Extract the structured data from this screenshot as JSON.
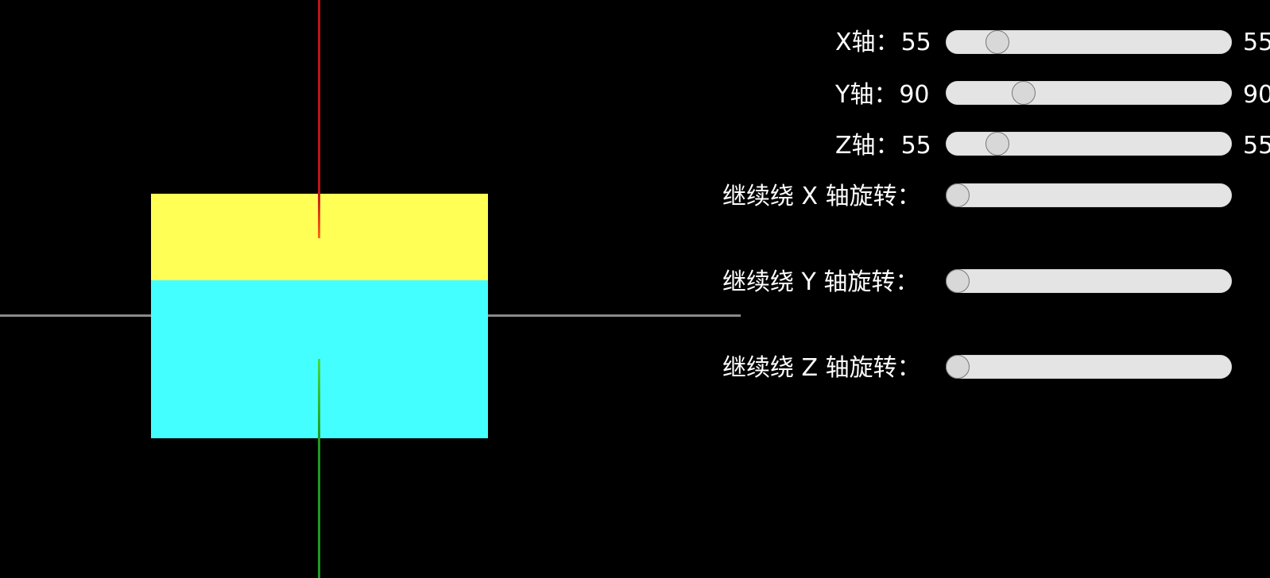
{
  "colors": {
    "background": "#000000",
    "axis_x": "#8a8a8a",
    "axis_y": "#c0121a",
    "axis_y_tip": "#ff6a1a",
    "axis_z": "#1f9a24",
    "axis_z_tip": "#4bdc3a",
    "face_top": "#ffff55",
    "face_front": "#44ffff",
    "track": "#e4e4e4"
  },
  "controls": {
    "x": {
      "label": "X轴：",
      "value": "55",
      "side_value": "55",
      "min": 0,
      "max": 360,
      "current": 55
    },
    "y": {
      "label": "Y轴：",
      "value": "90",
      "side_value": "90",
      "min": 0,
      "max": 360,
      "current": 90
    },
    "z": {
      "label": "Z轴：",
      "value": "55",
      "side_value": "55",
      "min": 0,
      "max": 360,
      "current": 55
    },
    "spin_x": {
      "label": "继续绕 X 轴旋转：",
      "min": 0,
      "max": 360,
      "current": 0
    },
    "spin_y": {
      "label": "继续绕 Y 轴旋转：",
      "min": 0,
      "max": 360,
      "current": 0
    },
    "spin_z": {
      "label": "继续绕 Z 轴旋转：",
      "min": 0,
      "max": 360,
      "current": 0
    }
  }
}
